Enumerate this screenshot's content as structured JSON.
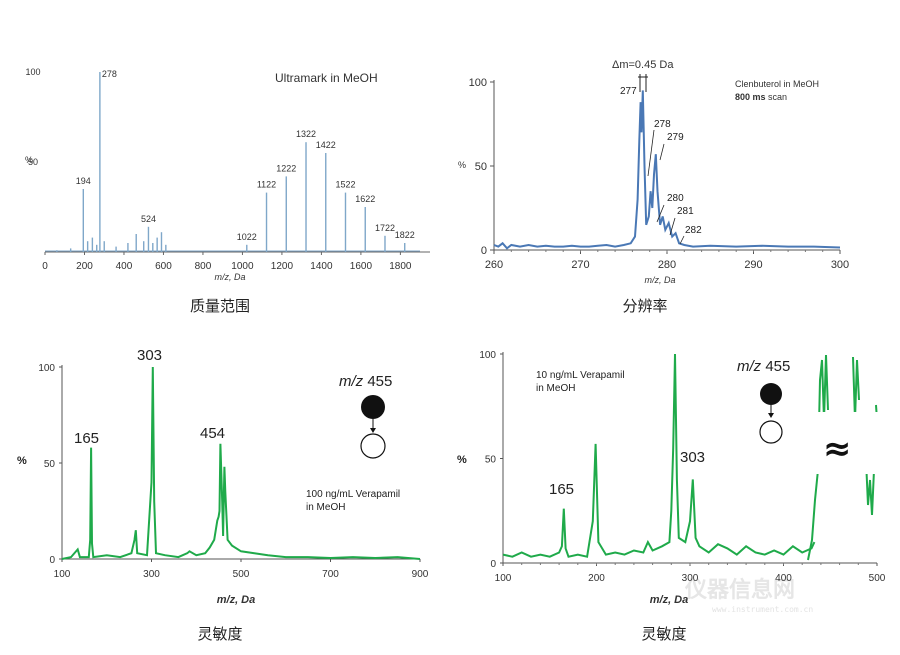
{
  "captions": [
    "质量范围",
    "分辨率",
    "灵敏度",
    "灵敏度"
  ],
  "colors": {
    "blue": "#7fa7c9",
    "blue_line": "#4a78b5",
    "green": "#1faa4a"
  },
  "watermark": {
    "main": "仪器信息网",
    "sub": "www.instrument.com.cn"
  },
  "chart_data": [
    {
      "type": "bar",
      "title": "Ultramark in MeOH",
      "xlabel": "m/z, Da",
      "ylabel": "%",
      "xlim": [
        0,
        1950
      ],
      "ylim": [
        0,
        100
      ],
      "x_ticks": [
        "0",
        "200",
        "400",
        "600",
        "800",
        "1000",
        "1200",
        "1400",
        "1600",
        "1800"
      ],
      "y_ticks": [
        "100",
        "50"
      ],
      "peaks": [
        {
          "x": 60,
          "y": 1
        },
        {
          "x": 130,
          "y": 2
        },
        {
          "x": 194,
          "y": 35
        },
        {
          "x": 216,
          "y": 6
        },
        {
          "x": 240,
          "y": 8
        },
        {
          "x": 262,
          "y": 4
        },
        {
          "x": 278,
          "y": 100
        },
        {
          "x": 300,
          "y": 6
        },
        {
          "x": 360,
          "y": 3
        },
        {
          "x": 420,
          "y": 5
        },
        {
          "x": 462,
          "y": 10
        },
        {
          "x": 500,
          "y": 6
        },
        {
          "x": 524,
          "y": 14
        },
        {
          "x": 546,
          "y": 5
        },
        {
          "x": 568,
          "y": 8
        },
        {
          "x": 590,
          "y": 11
        },
        {
          "x": 612,
          "y": 4
        },
        {
          "x": 1022,
          "y": 4
        },
        {
          "x": 1122,
          "y": 33
        },
        {
          "x": 1222,
          "y": 42
        },
        {
          "x": 1322,
          "y": 61
        },
        {
          "x": 1422,
          "y": 55
        },
        {
          "x": 1522,
          "y": 33
        },
        {
          "x": 1622,
          "y": 25
        },
        {
          "x": 1722,
          "y": 9
        },
        {
          "x": 1822,
          "y": 5
        }
      ],
      "labels": [
        {
          "x": 194,
          "text": "194"
        },
        {
          "x": 278,
          "text": "278"
        },
        {
          "x": 524,
          "text": "524"
        },
        {
          "x": 1022,
          "text": "1022"
        },
        {
          "x": 1122,
          "text": "1122"
        },
        {
          "x": 1222,
          "text": "1222"
        },
        {
          "x": 1322,
          "text": "1322"
        },
        {
          "x": 1422,
          "text": "1422"
        },
        {
          "x": 1522,
          "text": "1522"
        },
        {
          "x": 1622,
          "text": "1622"
        },
        {
          "x": 1722,
          "text": "1722"
        },
        {
          "x": 1822,
          "text": "1822"
        }
      ]
    },
    {
      "type": "line",
      "title": "Clenbuterol in MeOH",
      "subtitle_bold": "800 ms",
      "subtitle_rest": " scan",
      "xlabel": "m/z, Da",
      "ylabel": "%",
      "xlim": [
        260,
        300
      ],
      "ylim": [
        0,
        100
      ],
      "x_ticks": [
        "260",
        "270",
        "280",
        "290",
        "300"
      ],
      "y_ticks": [
        "100",
        "50",
        "0"
      ],
      "delta_label": "Δm=0.45 Da",
      "peak_labels": [
        "277",
        "278",
        "279",
        "280",
        "281",
        "282"
      ],
      "points": [
        [
          260,
          3
        ],
        [
          260.5,
          2
        ],
        [
          261,
          4
        ],
        [
          261.5,
          1
        ],
        [
          262,
          3
        ],
        [
          263,
          2
        ],
        [
          264,
          3
        ],
        [
          265,
          2
        ],
        [
          266,
          2.5
        ],
        [
          267,
          2
        ],
        [
          268,
          2
        ],
        [
          269,
          2.5
        ],
        [
          270,
          2
        ],
        [
          271,
          2
        ],
        [
          272,
          2.5
        ],
        [
          273,
          3
        ],
        [
          274,
          2
        ],
        [
          275,
          3
        ],
        [
          275.8,
          4
        ],
        [
          276.3,
          8
        ],
        [
          276.6,
          30
        ],
        [
          276.8,
          65
        ],
        [
          276.95,
          88
        ],
        [
          277.05,
          70
        ],
        [
          277.2,
          95
        ],
        [
          277.4,
          50
        ],
        [
          277.6,
          15
        ],
        [
          277.9,
          20
        ],
        [
          278.1,
          35
        ],
        [
          278.3,
          25
        ],
        [
          278.5,
          45
        ],
        [
          278.7,
          57
        ],
        [
          278.9,
          35
        ],
        [
          279.2,
          15
        ],
        [
          279.5,
          20
        ],
        [
          279.8,
          12
        ],
        [
          280.2,
          16
        ],
        [
          280.6,
          8
        ],
        [
          281,
          10
        ],
        [
          281.4,
          4
        ],
        [
          282,
          3
        ],
        [
          283,
          2
        ],
        [
          285,
          2.5
        ],
        [
          288,
          2
        ],
        [
          291,
          2.5
        ],
        [
          294,
          2
        ],
        [
          297,
          2
        ],
        [
          300,
          1.5
        ]
      ]
    },
    {
      "type": "line",
      "xlabel": "m/z, Da",
      "ylabel": "%",
      "xlim": [
        100,
        900
      ],
      "ylim": [
        0,
        100
      ],
      "x_ticks": [
        "100",
        "300",
        "500",
        "700",
        "900"
      ],
      "y_ticks": [
        "100",
        "50",
        "0"
      ],
      "mz_label": "m/z",
      "mz_value": " 455",
      "note_line1": "100 ng/mL Verapamil",
      "note_line2": "in MeOH",
      "peak_labels": [
        "165",
        "303",
        "454"
      ],
      "points": [
        [
          100,
          0
        ],
        [
          120,
          1
        ],
        [
          135,
          5
        ],
        [
          140,
          1
        ],
        [
          160,
          1
        ],
        [
          163,
          10
        ],
        [
          165,
          58
        ],
        [
          167,
          8
        ],
        [
          170,
          1
        ],
        [
          200,
          2
        ],
        [
          230,
          1
        ],
        [
          255,
          3
        ],
        [
          262,
          10
        ],
        [
          265,
          15
        ],
        [
          268,
          3
        ],
        [
          290,
          2
        ],
        [
          300,
          40
        ],
        [
          303,
          100
        ],
        [
          306,
          30
        ],
        [
          310,
          3
        ],
        [
          330,
          2
        ],
        [
          360,
          1
        ],
        [
          380,
          3
        ],
        [
          385,
          4
        ],
        [
          400,
          2
        ],
        [
          420,
          3
        ],
        [
          430,
          6
        ],
        [
          440,
          10
        ],
        [
          447,
          20
        ],
        [
          450,
          22
        ],
        [
          452,
          25
        ],
        [
          454,
          60
        ],
        [
          456,
          45
        ],
        [
          458,
          30
        ],
        [
          460,
          12
        ],
        [
          463,
          48
        ],
        [
          465,
          35
        ],
        [
          470,
          10
        ],
        [
          480,
          7
        ],
        [
          500,
          4
        ],
        [
          530,
          3
        ],
        [
          560,
          2
        ],
        [
          600,
          1
        ],
        [
          650,
          1
        ],
        [
          700,
          0.5
        ],
        [
          750,
          1
        ],
        [
          800,
          0.5
        ],
        [
          850,
          1
        ],
        [
          900,
          0
        ]
      ]
    },
    {
      "type": "line",
      "xlabel": "m/z, Da",
      "ylabel": "%",
      "xlim": [
        100,
        500
      ],
      "ylim": [
        0,
        100
      ],
      "x_ticks": [
        "100",
        "200",
        "300",
        "400",
        "500"
      ],
      "y_ticks": [
        "100",
        "50",
        "0"
      ],
      "mz_label": "m/z",
      "mz_value": " 455",
      "note_line1": "10 ng/mL Verapamil",
      "note_line2": "in MeOH",
      "break_symbol": "≈",
      "peak_labels": [
        "165",
        "303"
      ],
      "points": [
        [
          100,
          4
        ],
        [
          110,
          3
        ],
        [
          120,
          5
        ],
        [
          130,
          3
        ],
        [
          140,
          4
        ],
        [
          150,
          3
        ],
        [
          160,
          5
        ],
        [
          163,
          8
        ],
        [
          165,
          26
        ],
        [
          167,
          7
        ],
        [
          170,
          3
        ],
        [
          180,
          4
        ],
        [
          190,
          3
        ],
        [
          196,
          20
        ],
        [
          199,
          57
        ],
        [
          202,
          10
        ],
        [
          210,
          4
        ],
        [
          220,
          5
        ],
        [
          230,
          4
        ],
        [
          240,
          6
        ],
        [
          250,
          5
        ],
        [
          255,
          10
        ],
        [
          260,
          6
        ],
        [
          270,
          8
        ],
        [
          278,
          10
        ],
        [
          280,
          25
        ],
        [
          282,
          55
        ],
        [
          284,
          100
        ],
        [
          286,
          40
        ],
        [
          288,
          12
        ],
        [
          295,
          10
        ],
        [
          300,
          20
        ],
        [
          303,
          40
        ],
        [
          306,
          12
        ],
        [
          310,
          8
        ],
        [
          320,
          5
        ],
        [
          330,
          9
        ],
        [
          340,
          7
        ],
        [
          350,
          4
        ],
        [
          360,
          8
        ],
        [
          370,
          5
        ],
        [
          380,
          4
        ],
        [
          390,
          6
        ],
        [
          400,
          4
        ],
        [
          410,
          8
        ],
        [
          420,
          5
        ],
        [
          430,
          7
        ],
        [
          433,
          10
        ]
      ]
    }
  ]
}
